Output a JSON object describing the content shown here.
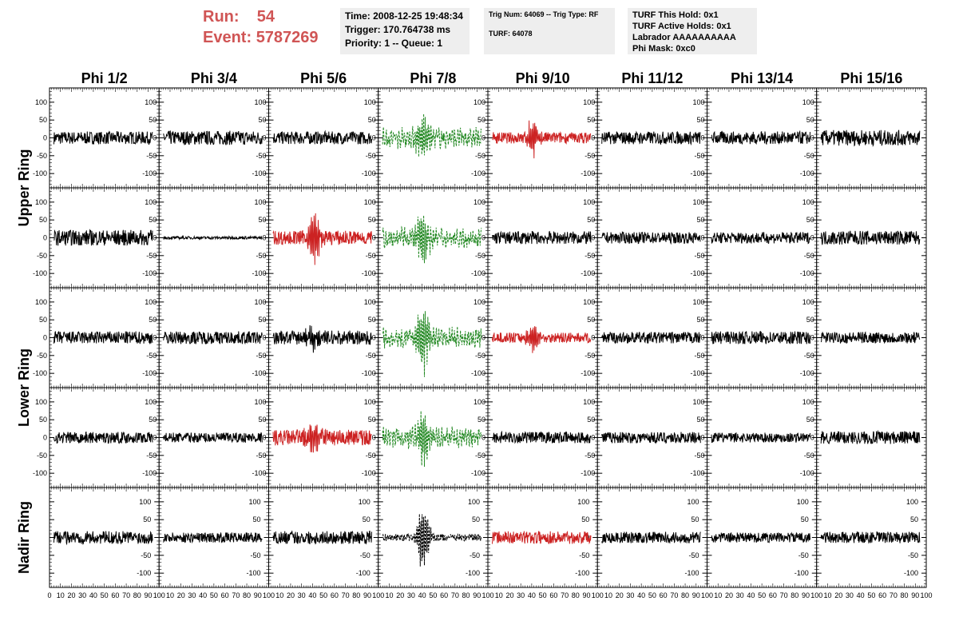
{
  "header": {
    "run_label": "Run:",
    "run_value": "54",
    "event_label": "Event:",
    "event_value": "5787269",
    "time_line": "Time: 2008-12-25 19:48:34",
    "trigger_line": "Trigger: 170.764738 ms",
    "priority_line": "Priority: 1 -- Queue: 1",
    "trig_line": "Trig Num: 64069 -- Trig Type: RF",
    "turf_line": "TURF: 64078",
    "turf_hold_line": "TURF This Hold: 0x1",
    "turf_active_line": "TURF Active Holds: 0x1",
    "labrador_line": "Labrador AAAAAAAAAA",
    "phi_mask_line": "Phi Mask: 0xc0"
  },
  "chart_data": {
    "type": "line",
    "columns": [
      "Phi 1/2",
      "Phi 3/4",
      "Phi 5/6",
      "Phi 7/8",
      "Phi 9/10",
      "Phi 11/12",
      "Phi 13/14",
      "Phi 15/16"
    ],
    "rows": [
      "Upper Ring",
      "Upper Ring",
      "Lower Ring",
      "Lower Ring",
      "Nadir Ring"
    ],
    "ring_labels": [
      "Upper Ring",
      "Lower Ring",
      "Nadir Ring"
    ],
    "xlim": [
      0,
      100
    ],
    "ylim": [
      -140,
      140
    ],
    "yticks": [
      -100,
      -50,
      0,
      50,
      100
    ],
    "xticks": [
      0,
      10,
      20,
      30,
      40,
      50,
      60,
      70,
      80,
      90,
      100
    ],
    "colors": {
      "normal": "#000000",
      "triggered": "#cc2222",
      "l3": "#228822"
    },
    "panels": [
      [
        {
          "style": "normal",
          "amp": 18,
          "burst": 0
        },
        {
          "style": "normal",
          "amp": 20,
          "burst": 0
        },
        {
          "style": "normal",
          "amp": 18,
          "burst": 0
        },
        {
          "style": "l3",
          "amp": 20,
          "burst": 70,
          "dashed": true
        },
        {
          "style": "triggered",
          "amp": 16,
          "burst": 50
        },
        {
          "style": "normal",
          "amp": 18,
          "burst": 0
        },
        {
          "style": "normal",
          "amp": 18,
          "burst": 0
        },
        {
          "style": "normal",
          "amp": 22,
          "burst": 0
        }
      ],
      [
        {
          "style": "normal",
          "amp": 22,
          "burst": 0
        },
        {
          "style": "normal",
          "amp": 4,
          "burst": 0
        },
        {
          "style": "triggered",
          "amp": 20,
          "burst": 70
        },
        {
          "style": "l3",
          "amp": 20,
          "burst": 80,
          "dashed": true
        },
        {
          "style": "normal",
          "amp": 18,
          "burst": 0
        },
        {
          "style": "normal",
          "amp": 16,
          "burst": 0
        },
        {
          "style": "normal",
          "amp": 16,
          "burst": 0
        },
        {
          "style": "normal",
          "amp": 20,
          "burst": 0
        }
      ],
      [
        {
          "style": "normal",
          "amp": 18,
          "burst": 0
        },
        {
          "style": "normal",
          "amp": 18,
          "burst": 0
        },
        {
          "style": "normal",
          "amp": 20,
          "burst": 35
        },
        {
          "style": "l3",
          "amp": 20,
          "burst": 100,
          "dashed": true
        },
        {
          "style": "triggered",
          "amp": 14,
          "burst": 35
        },
        {
          "style": "normal",
          "amp": 16,
          "burst": 0
        },
        {
          "style": "normal",
          "amp": 18,
          "burst": 0
        },
        {
          "style": "normal",
          "amp": 16,
          "burst": 0
        }
      ],
      [
        {
          "style": "normal",
          "amp": 16,
          "burst": 0
        },
        {
          "style": "normal",
          "amp": 14,
          "burst": 0
        },
        {
          "style": "triggered",
          "amp": 22,
          "burst": 45
        },
        {
          "style": "l3",
          "amp": 20,
          "burst": 80,
          "dashed": true
        },
        {
          "style": "normal",
          "amp": 16,
          "burst": 0
        },
        {
          "style": "normal",
          "amp": 16,
          "burst": 0
        },
        {
          "style": "normal",
          "amp": 14,
          "burst": 0
        },
        {
          "style": "normal",
          "amp": 18,
          "burst": 0
        }
      ],
      [
        {
          "style": "normal",
          "amp": 18,
          "burst": 0
        },
        {
          "style": "normal",
          "amp": 14,
          "burst": 0
        },
        {
          "style": "normal",
          "amp": 18,
          "burst": 0
        },
        {
          "style": "normal",
          "amp": 10,
          "burst": 100,
          "dashed": true
        },
        {
          "style": "triggered",
          "amp": 18,
          "burst": 0
        },
        {
          "style": "normal",
          "amp": 16,
          "burst": 0
        },
        {
          "style": "normal",
          "amp": 14,
          "burst": 0
        },
        {
          "style": "normal",
          "amp": 16,
          "burst": 0
        }
      ]
    ]
  }
}
